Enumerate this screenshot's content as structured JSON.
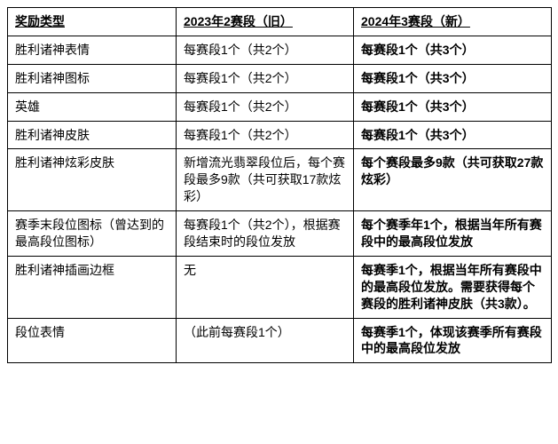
{
  "table": {
    "headers": [
      "奖励类型",
      "2023年2赛段（旧）",
      "2024年3赛段（新）"
    ],
    "rows": [
      {
        "type": "胜利诸神表情",
        "old": "每赛段1个（共2个）",
        "new": "每赛段1个（共3个）"
      },
      {
        "type": "胜利诸神图标",
        "old": "每赛段1个（共2个）",
        "new": "每赛段1个（共3个）"
      },
      {
        "type": "英雄",
        "old": "每赛段1个（共2个）",
        "new": "每赛段1个（共3个）"
      },
      {
        "type": "胜利诸神皮肤",
        "old": "每赛段1个（共2个）",
        "new": "每赛段1个（共3个）"
      },
      {
        "type": "胜利诸神炫彩皮肤",
        "old": "新增流光翡翠段位后，每个赛段最多9款（共可获取17款炫彩）",
        "new": "每个赛段最多9款（共可获取27款炫彩）"
      },
      {
        "type": "赛季末段位图标（曾达到的最高段位图标）",
        "old": "每赛段1个（共2个），根据赛段结束时的段位发放",
        "new": "每个赛季年1个，根据当年所有赛段中的最高段位发放"
      },
      {
        "type": "胜利诸神插画边框",
        "old": "无",
        "new": "每赛季1个，根据当年所有赛段中的最高段位发放。需要获得每个赛段的胜利诸神皮肤（共3款）。"
      },
      {
        "type": "段位表情",
        "old": "（此前每赛段1个）",
        "new": "每赛季1个，体现该赛季所有赛段中的最高段位发放"
      }
    ]
  }
}
